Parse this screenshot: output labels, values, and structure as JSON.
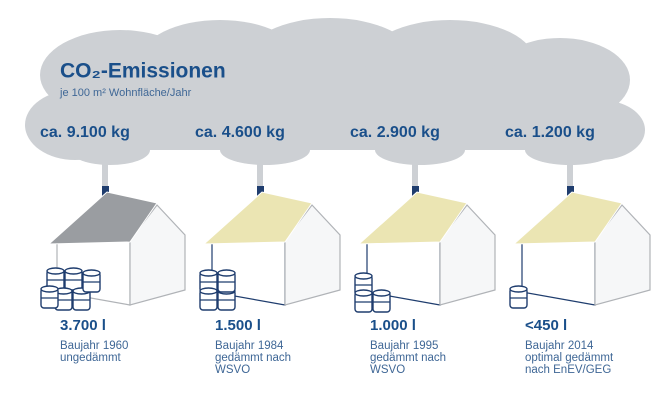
{
  "header": {
    "title": "CO₂-Emissionen",
    "subtitle": "je 100 m² Wohnfläche/Jahr"
  },
  "houses": [
    {
      "emission": "ca. 9.100 kg",
      "oil": "3.700 l",
      "lines": [
        "Baujahr 1960",
        "ungedämmt"
      ]
    },
    {
      "emission": "ca. 4.600 kg",
      "oil": "1.500 l",
      "lines": [
        "Baujahr 1984",
        "gedämmt nach",
        "WSVO"
      ]
    },
    {
      "emission": "ca. 2.900 kg",
      "oil": "1.000 l",
      "lines": [
        "Baujahr 1995",
        "gedämmt nach",
        "WSVO"
      ]
    },
    {
      "emission": "ca. 1.200 kg",
      "oil": "<450 l",
      "lines": [
        "Baujahr 2014",
        "optimal gedämmt",
        "nach EnEV/GEG"
      ]
    }
  ]
}
